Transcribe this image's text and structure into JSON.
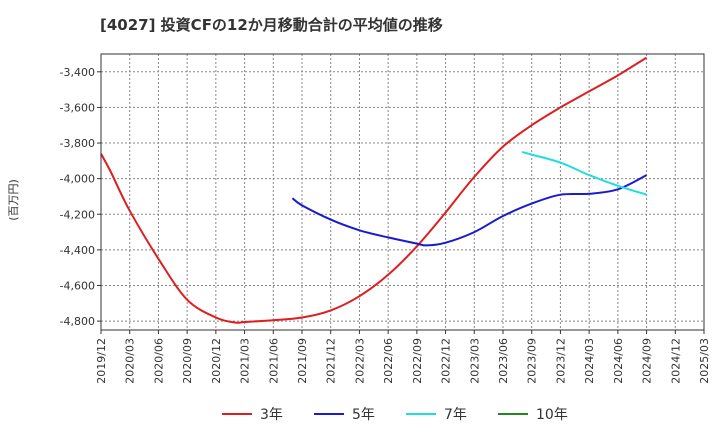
{
  "chart_data": {
    "type": "line",
    "title": "[4027]  投資CFの12か月移動合計の平均値の推移",
    "ylabel": "(百万円)",
    "xlabel": "",
    "ylim": [
      -4850,
      -3300
    ],
    "yticks": [
      -4800,
      -4600,
      -4400,
      -4200,
      -4000,
      -3800,
      -3600,
      -3400
    ],
    "ytick_labels": [
      "-4,800",
      "-4,600",
      "-4,400",
      "-4,200",
      "-4,000",
      "-3,800",
      "-3,600",
      "-3,400"
    ],
    "xticks": [
      "2019/12",
      "2020/03",
      "2020/06",
      "2020/09",
      "2020/12",
      "2021/03",
      "2021/06",
      "2021/09",
      "2021/12",
      "2022/03",
      "2022/06",
      "2022/09",
      "2022/12",
      "2023/03",
      "2023/06",
      "2023/09",
      "2023/12",
      "2024/03",
      "2024/06",
      "2024/09",
      "2024/12",
      "2025/03"
    ],
    "grid": true,
    "legend_position": "bottom",
    "series": [
      {
        "name": "3年",
        "color": "#dd1f1f",
        "x": [
          "2019/12",
          "2020/01",
          "2020/03",
          "2020/06",
          "2020/09",
          "2020/12",
          "2021/02",
          "2021/03",
          "2021/06",
          "2021/09",
          "2021/12",
          "2022/03",
          "2022/06",
          "2022/09",
          "2022/12",
          "2023/03",
          "2023/06",
          "2023/09",
          "2023/12",
          "2024/03",
          "2024/06",
          "2024/09"
        ],
        "values": [
          -3860,
          -3960,
          -4180,
          -4450,
          -4680,
          -4780,
          -4808,
          -4805,
          -4795,
          -4780,
          -4740,
          -4660,
          -4540,
          -4380,
          -4190,
          -3990,
          -3820,
          -3700,
          -3600,
          -3510,
          -3420,
          -3320
        ]
      },
      {
        "name": "5年",
        "color": "#1a1ad0",
        "x": [
          "2021/08",
          "2021/09",
          "2021/12",
          "2022/03",
          "2022/06",
          "2022/09",
          "2022/10",
          "2022/12",
          "2023/03",
          "2023/06",
          "2023/09",
          "2023/12",
          "2024/03",
          "2024/06",
          "2024/09"
        ],
        "values": [
          -4110,
          -4150,
          -4230,
          -4290,
          -4330,
          -4365,
          -4375,
          -4360,
          -4300,
          -4210,
          -4140,
          -4090,
          -4085,
          -4060,
          -3980
        ]
      },
      {
        "name": "7年",
        "color": "#22dddd",
        "x": [
          "2023/08",
          "2023/09",
          "2023/12",
          "2024/03",
          "2024/06",
          "2024/09"
        ],
        "values": [
          -3850,
          -3865,
          -3910,
          -3980,
          -4040,
          -4090
        ]
      },
      {
        "name": "10年",
        "color": "#228822",
        "x": [],
        "values": []
      }
    ]
  }
}
